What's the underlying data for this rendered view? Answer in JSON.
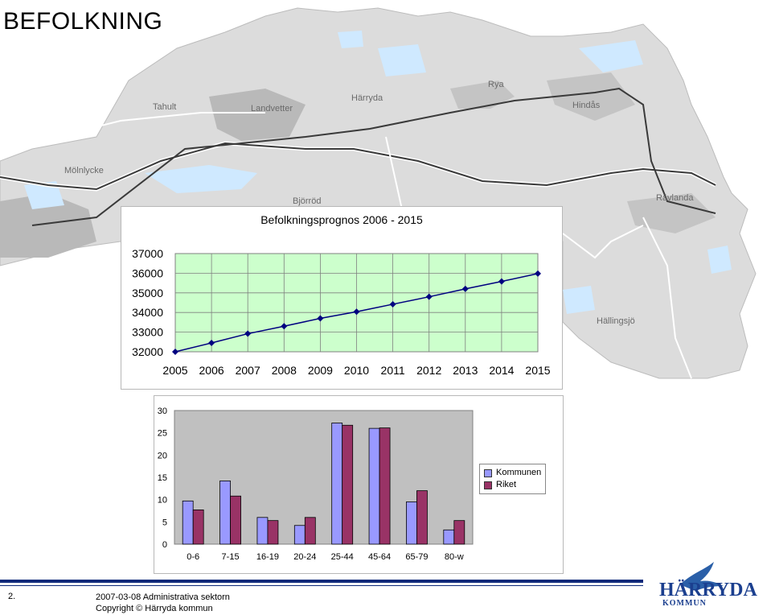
{
  "slide": {
    "title": "BEFOLKNING",
    "number": "2.",
    "footer_line1": "2007-03-08  Administrativa sektorn",
    "footer_line2": "Copyright © Härryda kommun"
  },
  "map": {
    "places": [
      "Tahult",
      "Landvetter",
      "Härryda",
      "Rya",
      "Hindås",
      "Mölnlycke",
      "Björröd",
      "Rävlanda",
      "Hällingsjö"
    ]
  },
  "logo": {
    "line1": "HÄRRYDA",
    "line2": "KOMMUN"
  },
  "colors": {
    "line_plot_bg": "#ccffcc",
    "line": "#000080",
    "bar_plot_bg": "#c0c0c0",
    "kommunen": "#9999ff",
    "riket": "#993366",
    "footer": "#102a7a"
  },
  "chart_data": [
    {
      "type": "line",
      "title": "Befolkningsprognos 2006 - 2015",
      "x": [
        "2005",
        "2006",
        "2007",
        "2008",
        "2009",
        "2010",
        "2011",
        "2012",
        "2013",
        "2014",
        "2015"
      ],
      "values": [
        32000,
        32450,
        32920,
        33300,
        33700,
        34040,
        34420,
        34800,
        35200,
        35580,
        35980
      ],
      "ylim": [
        32000,
        37000
      ],
      "yticks": [
        "37000",
        "36000",
        "35000",
        "34000",
        "33000",
        "32000"
      ],
      "grid": true,
      "legend": "none"
    },
    {
      "type": "bar",
      "categories": [
        "0-6",
        "7-15",
        "16-19",
        "20-24",
        "25-44",
        "45-64",
        "65-79",
        "80-w"
      ],
      "series": [
        {
          "name": "Kommunen",
          "values": [
            9.7,
            14.2,
            6,
            4.2,
            27.2,
            26,
            9.5,
            3.2
          ]
        },
        {
          "name": "Riket",
          "values": [
            7.7,
            10.8,
            5.3,
            6,
            26.7,
            26.1,
            12,
            5.3
          ]
        }
      ],
      "ylim": [
        0,
        30
      ],
      "yticks": [
        "30",
        "25",
        "20",
        "15",
        "10",
        "5",
        "0"
      ],
      "grid": false,
      "legend": "right"
    }
  ]
}
